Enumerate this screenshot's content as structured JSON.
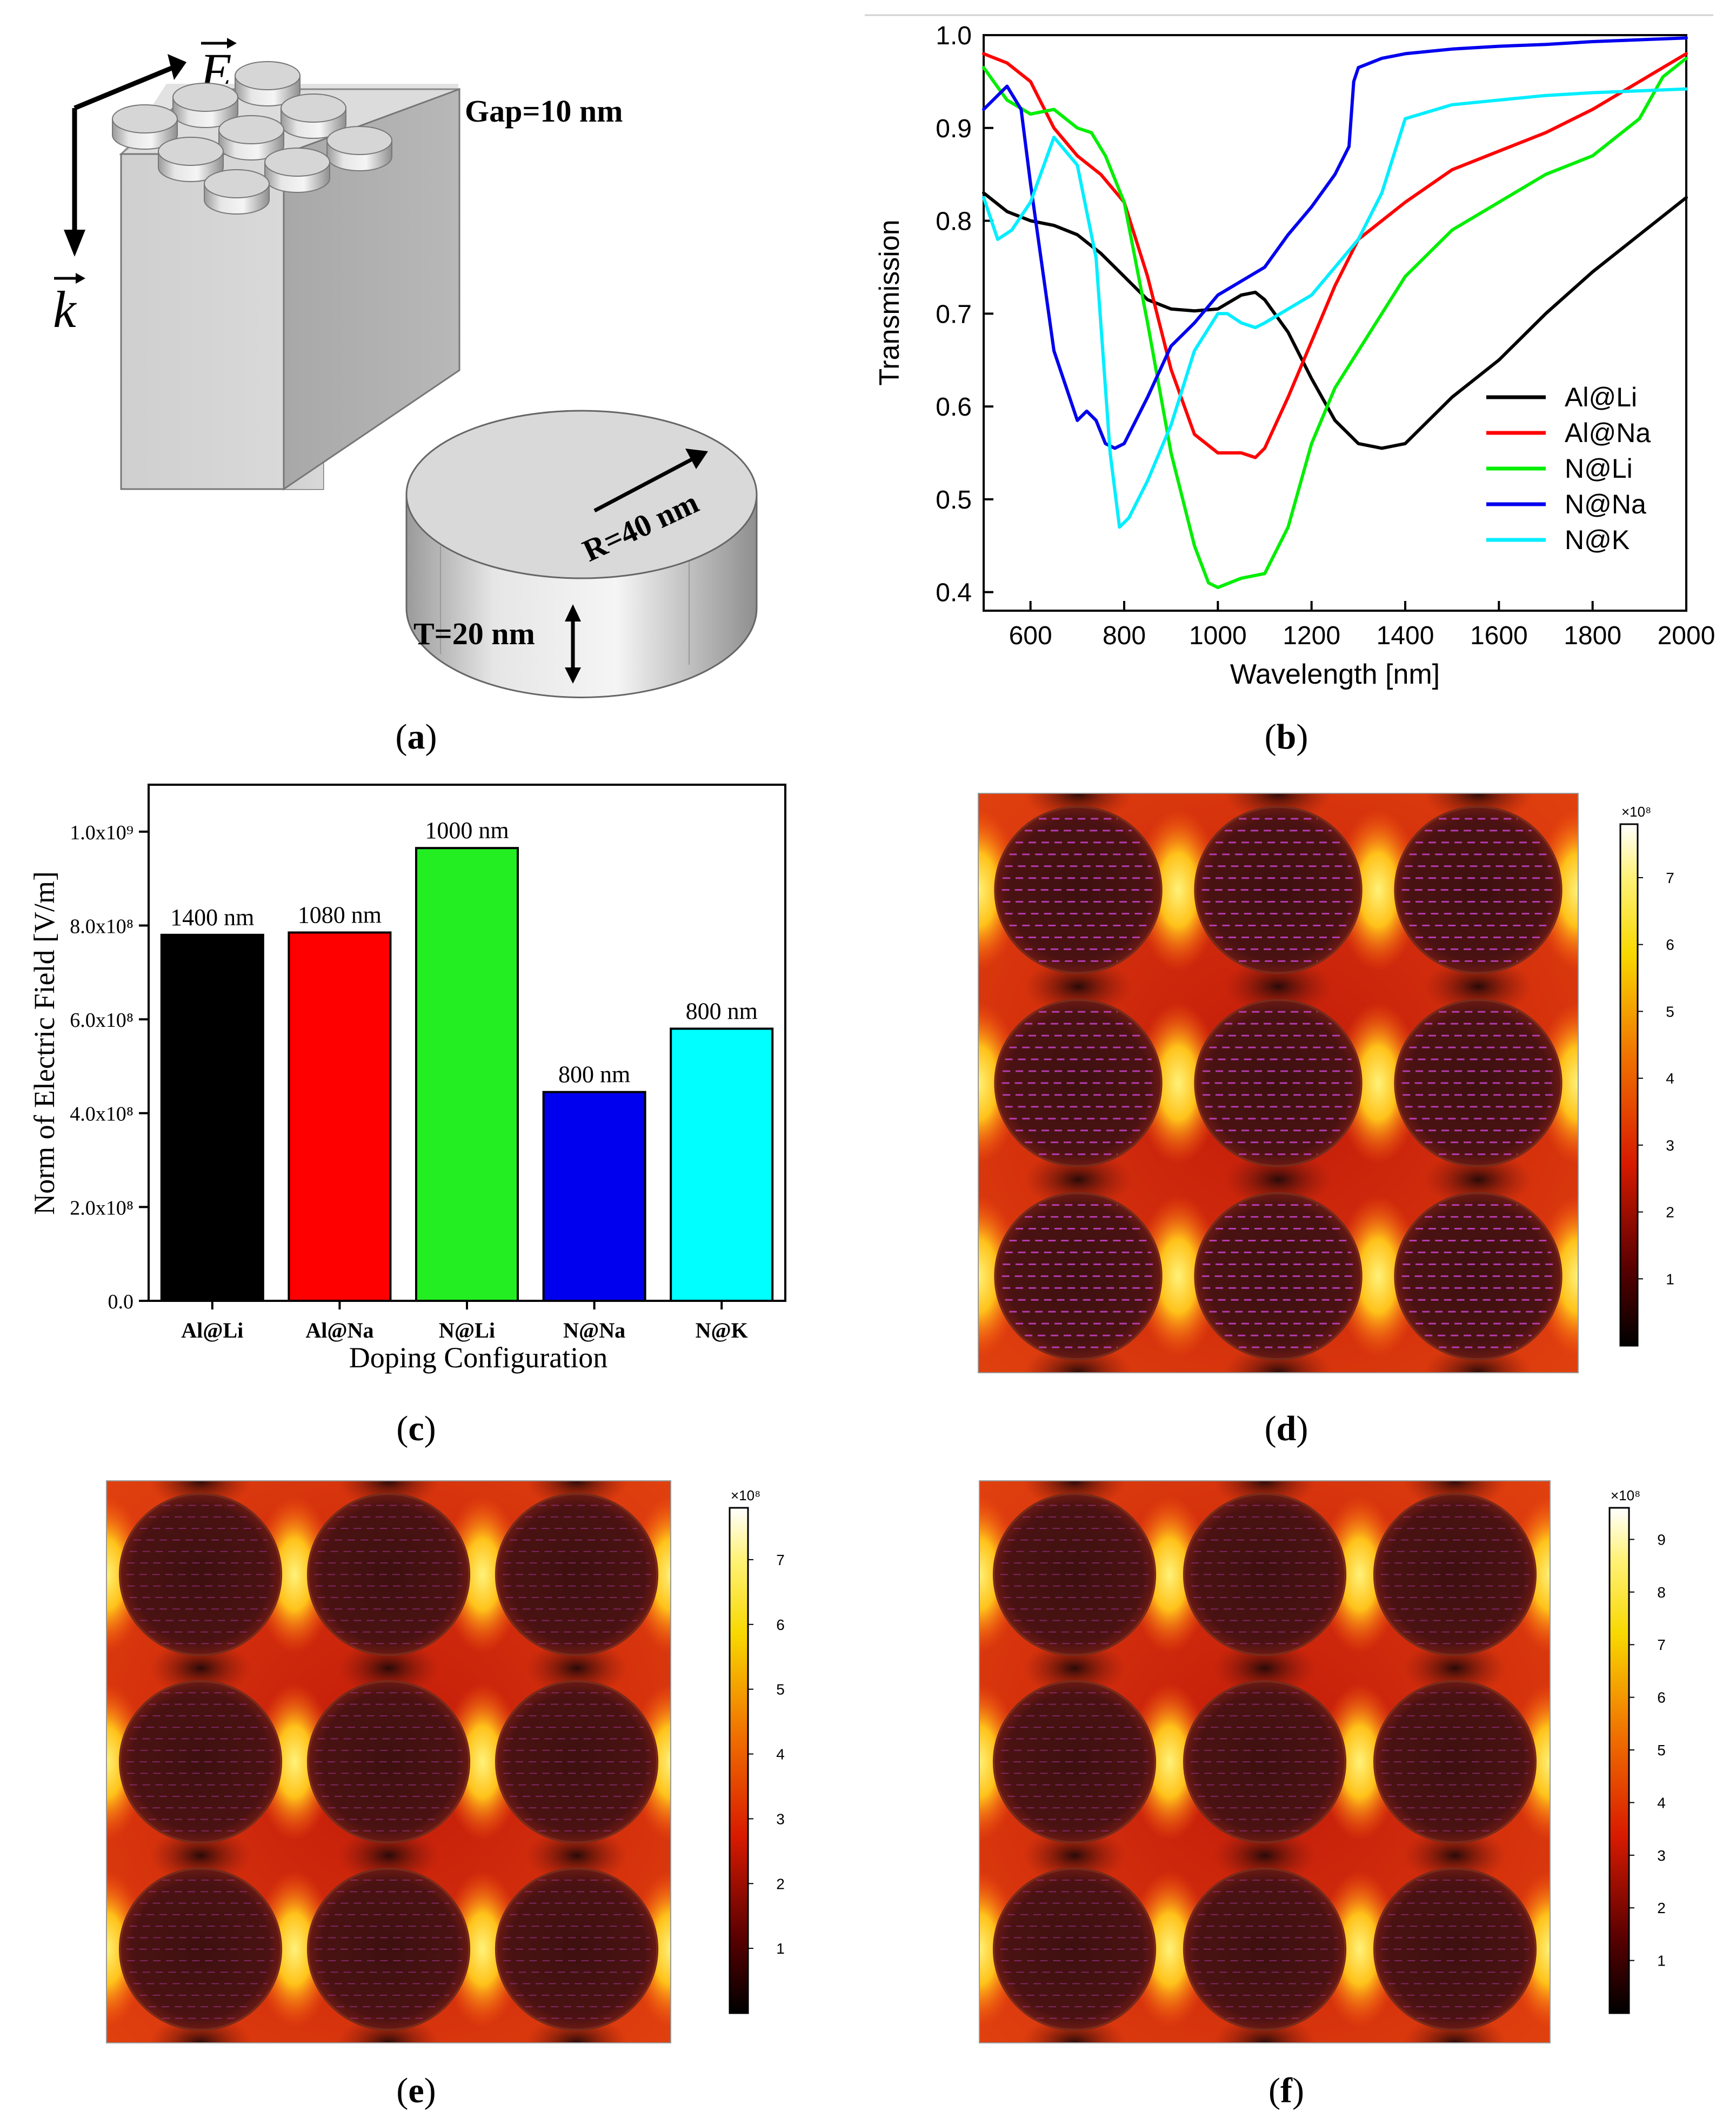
{
  "panels": {
    "a": {
      "caption_letter": "a",
      "labels": {
        "e_vec": "E",
        "k_vec": "k",
        "gap": "Gap=10 nm",
        "radius": "R=40 nm",
        "thickness": "T=20 nm"
      }
    },
    "b": {
      "caption_letter": "b"
    },
    "c": {
      "caption_letter": "c"
    },
    "d": {
      "caption_letter": "d",
      "colorbar": {
        "exponent": "×10⁸",
        "ticks": [
          "1",
          "2",
          "3",
          "4",
          "5",
          "6",
          "7"
        ],
        "max": 7.8
      }
    },
    "e": {
      "caption_letter": "e",
      "colorbar": {
        "exponent": "×10⁸",
        "ticks": [
          "1",
          "2",
          "3",
          "4",
          "5",
          "6",
          "7"
        ],
        "max": 7.8
      }
    },
    "f": {
      "caption_letter": "f",
      "colorbar": {
        "exponent": "×10⁸",
        "ticks": [
          "1",
          "2",
          "3",
          "4",
          "5",
          "6",
          "7",
          "8",
          "9"
        ],
        "max": 9.6
      }
    }
  },
  "chart_data": [
    {
      "type": "line",
      "panel": "b",
      "xlabel": "Wavelength [nm]",
      "ylabel": "Transmission",
      "xlim": [
        500,
        2000
      ],
      "ylim": [
        0.38,
        1.0
      ],
      "xticks": [
        "600",
        "800",
        "1000",
        "1200",
        "1400",
        "1600",
        "1800",
        "2000"
      ],
      "yticks": [
        "0.4",
        "0.5",
        "0.6",
        "0.7",
        "0.8",
        "0.9",
        "1.0"
      ],
      "legend_position": "lower-right",
      "series": [
        {
          "name": "Al@Li",
          "color": "#000000",
          "x": [
            500,
            550,
            600,
            650,
            700,
            750,
            800,
            850,
            900,
            950,
            1000,
            1050,
            1080,
            1100,
            1150,
            1200,
            1250,
            1300,
            1350,
            1400,
            1450,
            1500,
            1600,
            1700,
            1800,
            1900,
            2000
          ],
          "y": [
            0.83,
            0.81,
            0.8,
            0.795,
            0.785,
            0.765,
            0.74,
            0.715,
            0.705,
            0.703,
            0.705,
            0.72,
            0.723,
            0.715,
            0.68,
            0.63,
            0.585,
            0.56,
            0.555,
            0.56,
            0.585,
            0.61,
            0.65,
            0.7,
            0.745,
            0.785,
            0.825
          ]
        },
        {
          "name": "Al@Na",
          "color": "#ff0000",
          "x": [
            500,
            550,
            600,
            650,
            700,
            750,
            800,
            850,
            900,
            950,
            1000,
            1050,
            1080,
            1100,
            1150,
            1200,
            1250,
            1300,
            1350,
            1400,
            1500,
            1600,
            1700,
            1800,
            1900,
            2000
          ],
          "y": [
            0.98,
            0.97,
            0.95,
            0.9,
            0.87,
            0.85,
            0.82,
            0.74,
            0.64,
            0.57,
            0.55,
            0.55,
            0.545,
            0.555,
            0.61,
            0.67,
            0.73,
            0.78,
            0.8,
            0.82,
            0.855,
            0.875,
            0.895,
            0.92,
            0.95,
            0.98
          ]
        },
        {
          "name": "N@Li",
          "color": "#00ee00",
          "x": [
            500,
            550,
            600,
            650,
            700,
            730,
            760,
            800,
            850,
            900,
            950,
            980,
            1000,
            1050,
            1100,
            1150,
            1200,
            1250,
            1300,
            1400,
            1500,
            1600,
            1700,
            1800,
            1850,
            1900,
            1950,
            2000
          ],
          "y": [
            0.965,
            0.93,
            0.915,
            0.92,
            0.9,
            0.895,
            0.87,
            0.82,
            0.69,
            0.55,
            0.45,
            0.41,
            0.405,
            0.415,
            0.42,
            0.47,
            0.56,
            0.62,
            0.66,
            0.74,
            0.79,
            0.82,
            0.85,
            0.87,
            0.89,
            0.91,
            0.955,
            0.975
          ]
        },
        {
          "name": "N@Na",
          "color": "#0000ee",
          "x": [
            500,
            550,
            580,
            600,
            650,
            700,
            720,
            740,
            760,
            780,
            800,
            850,
            900,
            950,
            1000,
            1050,
            1100,
            1150,
            1200,
            1250,
            1280,
            1290,
            1300,
            1350,
            1400,
            1500,
            1600,
            1700,
            1800,
            1900,
            2000
          ],
          "y": [
            0.92,
            0.945,
            0.92,
            0.84,
            0.66,
            0.585,
            0.595,
            0.585,
            0.56,
            0.555,
            0.56,
            0.61,
            0.665,
            0.69,
            0.72,
            0.735,
            0.75,
            0.785,
            0.815,
            0.85,
            0.88,
            0.95,
            0.965,
            0.975,
            0.98,
            0.985,
            0.988,
            0.99,
            0.993,
            0.995,
            0.997
          ]
        },
        {
          "name": "N@K",
          "color": "#00eeff",
          "x": [
            500,
            530,
            560,
            600,
            650,
            700,
            740,
            770,
            790,
            810,
            850,
            900,
            950,
            1000,
            1020,
            1050,
            1080,
            1100,
            1200,
            1300,
            1350,
            1400,
            1500,
            1600,
            1700,
            1800,
            1900,
            2000
          ],
          "y": [
            0.825,
            0.78,
            0.79,
            0.82,
            0.89,
            0.86,
            0.76,
            0.55,
            0.47,
            0.48,
            0.52,
            0.58,
            0.66,
            0.7,
            0.7,
            0.69,
            0.685,
            0.69,
            0.72,
            0.78,
            0.83,
            0.91,
            0.925,
            0.93,
            0.935,
            0.938,
            0.94,
            0.942
          ]
        }
      ]
    },
    {
      "type": "bar",
      "panel": "c",
      "xlabel": "Doping Configuration",
      "ylabel": "Norm of Electric Field [V/m]",
      "ylim": [
        0,
        1.1
      ],
      "ytick_values": [
        0,
        0.2,
        0.4,
        0.6,
        0.8,
        1.0
      ],
      "ytick_labels": [
        "0.0",
        "2.0x10⁸",
        "4.0x10⁸",
        "6.0x10⁸",
        "8.0x10⁸",
        "1.0x10⁹"
      ],
      "categories": [
        "Al@Li",
        "Al@Na",
        "N@Li",
        "N@Na",
        "N@K"
      ],
      "values": [
        780000000.0,
        785000000.0,
        965000000.0,
        445000000.0,
        580000000.0
      ],
      "scale_values_1e9": [
        0.78,
        0.785,
        0.965,
        0.445,
        0.58
      ],
      "colors": [
        "#000000",
        "#ff0000",
        "#22ee22",
        "#0000ee",
        "#00ffff"
      ],
      "data_labels": [
        "1400 nm",
        "1080 nm",
        "1000 nm",
        "800 nm",
        "800 nm"
      ]
    }
  ]
}
